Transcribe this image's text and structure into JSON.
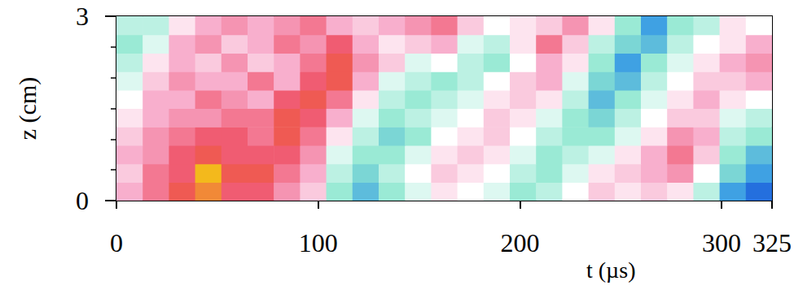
{
  "chart_data": {
    "type": "heatmap",
    "x_label": "t (µs)",
    "y_label": "z (cm)",
    "xlim": [
      0,
      325
    ],
    "ylim": [
      0,
      3
    ],
    "xticks": [
      0,
      100,
      200,
      300
    ],
    "yticks": [
      0,
      3
    ],
    "clim": [
      -1,
      1
    ],
    "t_edges": [
      0,
      13,
      26,
      39,
      52,
      65,
      78,
      91,
      104,
      117,
      130,
      143,
      156,
      169,
      182,
      195,
      208,
      221,
      234,
      247,
      260,
      273,
      286,
      299,
      312,
      325
    ],
    "z_edges": [
      0,
      0.3,
      0.6,
      0.9,
      1.2,
      1.5,
      1.8,
      2.1,
      2.4,
      2.7,
      3.0
    ],
    "cells": [
      [
        0.3,
        0.5,
        0.7,
        0.8,
        0.6,
        0.6,
        0.4,
        0.2,
        -0.3,
        -0.5,
        -0.3,
        -0.1,
        0.1,
        0,
        -0.1,
        -0.3,
        -0.2,
        0,
        0.2,
        0.1,
        0.2,
        0.1,
        -0.2,
        -0.6,
        -0.8
      ],
      [
        0.2,
        0.5,
        0.6,
        0.9,
        0.7,
        0.7,
        0.5,
        0.3,
        -0.2,
        -0.4,
        -0.2,
        0,
        0.2,
        0.1,
        0,
        -0.2,
        -0.3,
        -0.1,
        0.1,
        0.2,
        0.3,
        0.4,
        0,
        -0.4,
        -0.6
      ],
      [
        0.3,
        0.4,
        0.6,
        0.7,
        0.6,
        0.6,
        0.6,
        0.4,
        -0.1,
        -0.3,
        -0.3,
        -0.1,
        0.1,
        0.2,
        0.1,
        -0.1,
        -0.3,
        -0.2,
        -0.1,
        0.1,
        0.3,
        0.5,
        0.2,
        -0.3,
        -0.5
      ],
      [
        0.2,
        0.4,
        0.5,
        0.6,
        0.6,
        0.5,
        0.7,
        0.5,
        0.1,
        -0.2,
        -0.4,
        -0.3,
        0,
        0.1,
        0.2,
        0,
        -0.2,
        -0.3,
        -0.3,
        -0.1,
        0.1,
        0.4,
        0.3,
        -0.2,
        -0.3
      ],
      [
        0.1,
        0.3,
        0.4,
        0.4,
        0.5,
        0.5,
        0.7,
        0.6,
        0.3,
        -0.1,
        -0.3,
        -0.2,
        -0.1,
        0,
        0.2,
        0.1,
        -0.1,
        -0.3,
        -0.4,
        -0.2,
        0,
        0.2,
        0.2,
        -0.1,
        -0.2
      ],
      [
        0,
        0.3,
        0.3,
        0.5,
        0.4,
        0.3,
        0.6,
        0.7,
        0.5,
        0.1,
        -0.2,
        -0.3,
        -0.2,
        -0.1,
        0.1,
        0.2,
        0.1,
        -0.2,
        -0.5,
        -0.3,
        -0.1,
        0.1,
        0.3,
        0.1,
        0
      ],
      [
        -0.1,
        0.2,
        0.4,
        0.3,
        0.3,
        0.5,
        0.3,
        0.6,
        0.7,
        0.3,
        -0.1,
        -0.2,
        -0.3,
        -0.2,
        0,
        0.2,
        0.3,
        -0.1,
        -0.4,
        -0.5,
        -0.2,
        0,
        0.2,
        0.2,
        0.3
      ],
      [
        -0.2,
        0.1,
        0.3,
        0.2,
        0.4,
        0.2,
        0.3,
        0.5,
        0.7,
        0.4,
        0.2,
        -0.1,
        0,
        -0.2,
        -0.3,
        0,
        0.3,
        0.1,
        -0.3,
        -0.6,
        -0.3,
        -0.1,
        0.1,
        0.3,
        0.4
      ],
      [
        -0.3,
        -0.1,
        0.3,
        0.4,
        0.2,
        0.3,
        0.5,
        0.4,
        0.6,
        0.3,
        0.1,
        0.2,
        0.3,
        -0.1,
        -0.2,
        0.1,
        0.5,
        0.2,
        -0.2,
        -0.4,
        -0.5,
        -0.2,
        0,
        0.1,
        0.3
      ],
      [
        -0.2,
        -0.2,
        0.1,
        0.3,
        0.4,
        0.3,
        0.4,
        0.5,
        0.3,
        0.2,
        0.3,
        0.4,
        0.5,
        0.2,
        0,
        0.1,
        0.2,
        0.4,
        0.1,
        -0.3,
        -0.6,
        -0.3,
        -0.2,
        0.1,
        0
      ]
    ]
  }
}
